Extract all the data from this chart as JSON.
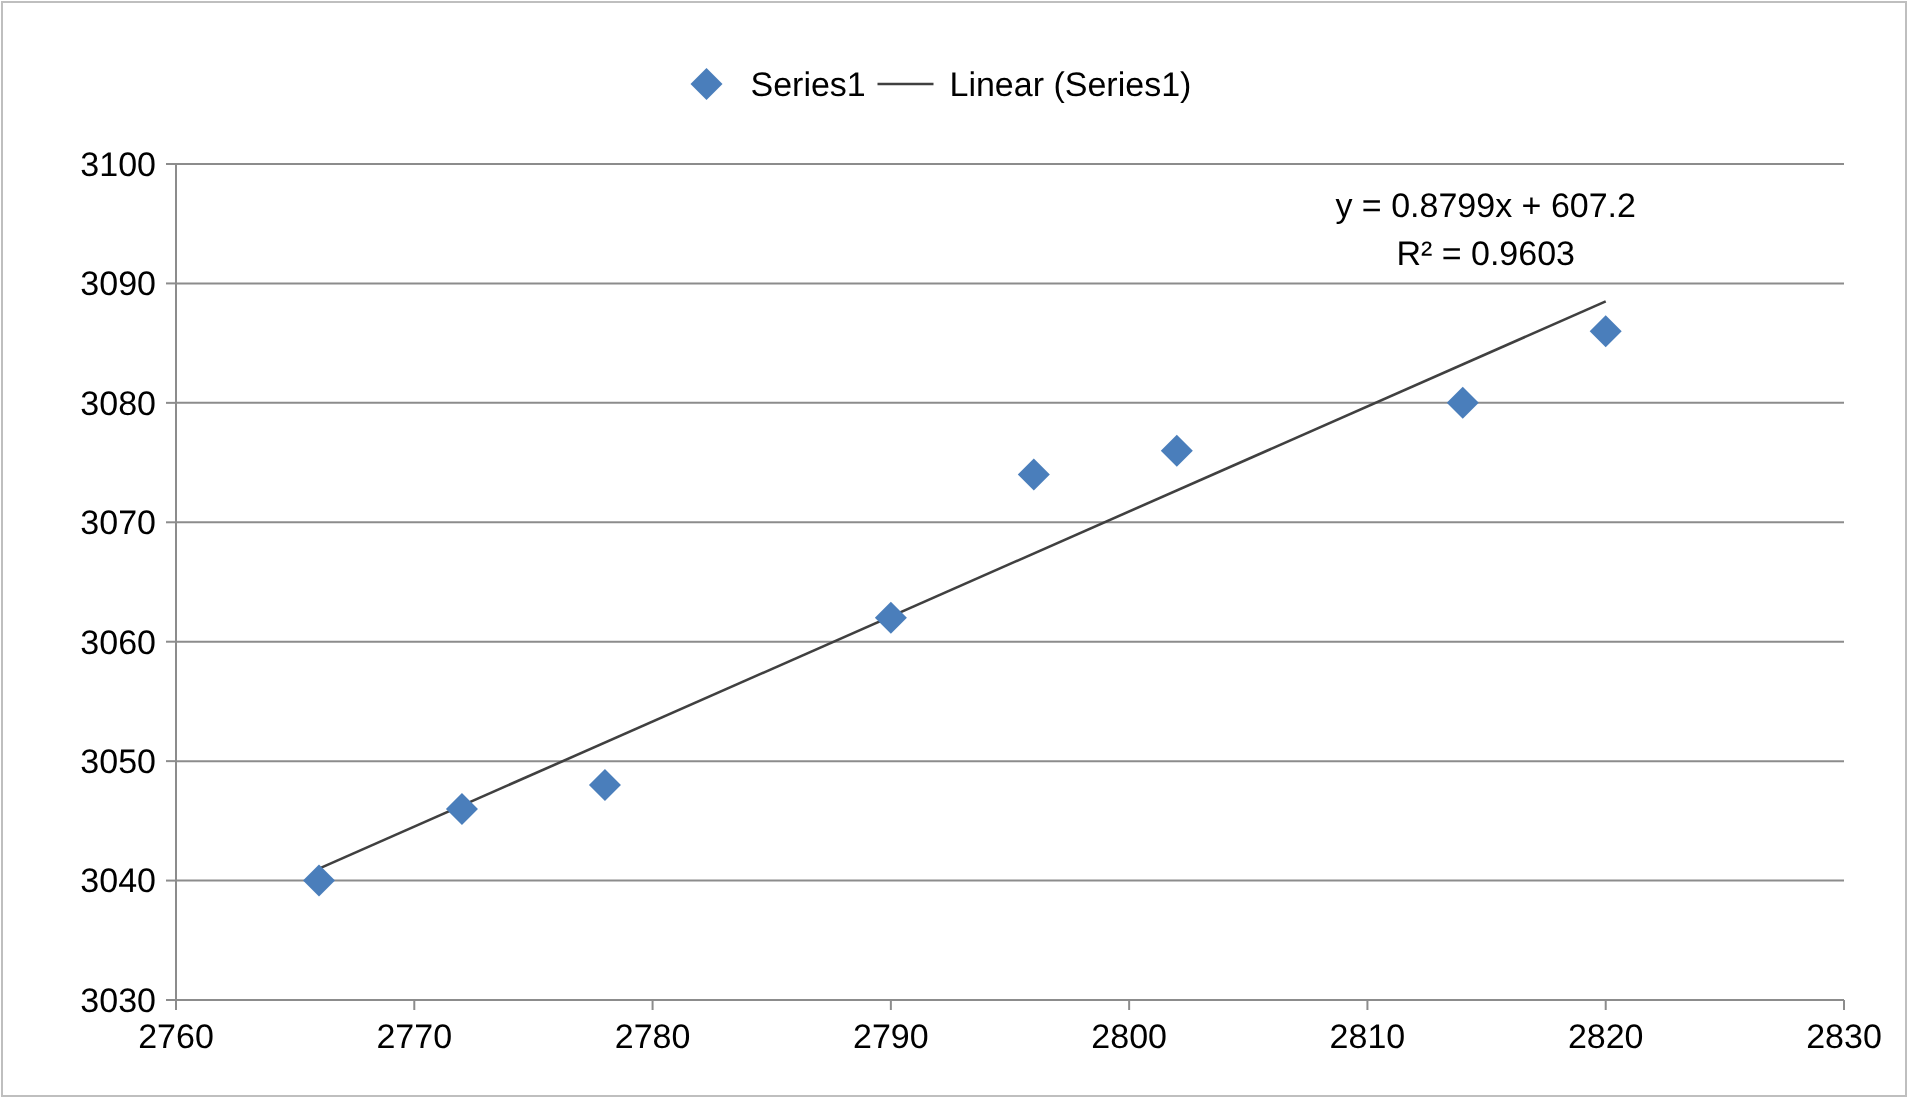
{
  "chart_data": {
    "type": "scatter",
    "xlim": [
      2760,
      2830
    ],
    "xticks": [
      2760,
      2770,
      2780,
      2790,
      2800,
      2810,
      2820,
      2830
    ],
    "ylim": [
      3030,
      3100
    ],
    "yticks": [
      3030,
      3040,
      3050,
      3060,
      3070,
      3080,
      3090,
      3100
    ],
    "grid": "y",
    "legend": "top",
    "series": [
      {
        "name": "Series1",
        "marker": "diamond",
        "color": "#4a7ebb",
        "x": [
          2766,
          2772,
          2778,
          2790,
          2796,
          2802,
          2814,
          2820
        ],
        "values": [
          3040,
          3046,
          3048,
          3062,
          3074,
          3076,
          3080,
          3086
        ]
      },
      {
        "name": "Linear (Series1)",
        "type": "line",
        "marker": "none",
        "color": "#404040",
        "line_style": "solid",
        "x": [
          2766,
          2820
        ],
        "values": [
          3041.0,
          3088.5
        ]
      }
    ],
    "annotations": [
      "y = 0.8799x + 607.2",
      "R² = 0.9603"
    ]
  }
}
